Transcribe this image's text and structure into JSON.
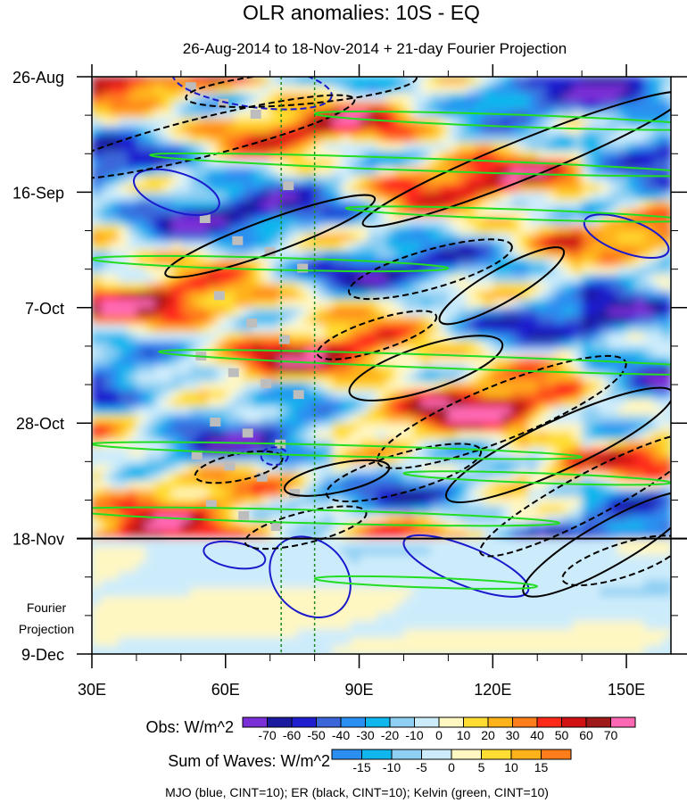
{
  "chart_data": {
    "type": "heatmap",
    "title": "OLR anomalies: 10S - EQ",
    "subtitle": "26-Aug-2014 to 18-Nov-2014 + 21-day Fourier Projection",
    "x_axis": {
      "range": [
        30,
        160
      ],
      "ticks": [
        {
          "value": 30,
          "label": "30E"
        },
        {
          "value": 60,
          "label": "60E"
        },
        {
          "value": 90,
          "label": "90E"
        },
        {
          "value": 120,
          "label": "120E"
        },
        {
          "value": 150,
          "label": "150E"
        }
      ]
    },
    "y_axis": {
      "range_days": [
        0,
        105
      ],
      "ticks": [
        {
          "day": 0,
          "label": "26-Aug"
        },
        {
          "day": 21,
          "label": "16-Sep"
        },
        {
          "day": 42,
          "label": "7-Oct"
        },
        {
          "day": 63,
          "label": "28-Oct"
        },
        {
          "day": 84,
          "label": "18-Nov"
        },
        {
          "day": 105,
          "label": "9-Dec"
        }
      ],
      "forecast_start_day": 84,
      "forecast_label_line1": "Fourier",
      "forecast_label_line2": "Projection"
    },
    "reference_lines_lon": [
      72.5,
      80
    ],
    "obs_colorbar": {
      "label": "Obs: W/m^2",
      "ticks": [
        "-70",
        "-60",
        "-50",
        "-40",
        "-30",
        "-20",
        "-10",
        "0",
        "10",
        "20",
        "30",
        "40",
        "50",
        "60",
        "70"
      ],
      "colors": [
        "#7b2fd6",
        "#1a1a9e",
        "#1f1fcf",
        "#3a66d9",
        "#2a8ff0",
        "#10b6ee",
        "#8ecff3",
        "#cdecfb",
        "#fff7c2",
        "#ffdd33",
        "#ffb21a",
        "#ff7d1a",
        "#ff2a1a",
        "#d01212",
        "#9e1a1a",
        "#ff69b4"
      ]
    },
    "waves_colorbar": {
      "label": "Sum of Waves: W/m^2",
      "ticks": [
        "-15",
        "-10",
        "-5",
        "0",
        "5",
        "10",
        "15"
      ],
      "colors": [
        "#2a8ff0",
        "#10b6ee",
        "#8ecff3",
        "#cdecfb",
        "#fff7c2",
        "#ffdd33",
        "#ffb21a",
        "#ff7d1a"
      ]
    },
    "legend_note": "MJO (blue, CINT=10); ER (black, CINT=10); Kelvin (green, CINT=10)",
    "series": [
      {
        "name": "MJO",
        "color": "#1a1acc",
        "contours": [
          {
            "lon": 66,
            "day": 1.5,
            "rx": 18,
            "ry": 4,
            "angle": 8,
            "dashed": true
          },
          {
            "lon": 49,
            "day": 21,
            "rx": 10,
            "ry": 3.5,
            "angle": 18,
            "dashed": false
          },
          {
            "lon": 62,
            "day": 87,
            "rx": 7,
            "ry": 2.3,
            "angle": 10,
            "dashed": false
          },
          {
            "lon": 79,
            "day": 91,
            "rx": 10,
            "ry": 6.5,
            "angle": 45,
            "dashed": false
          },
          {
            "lon": 114,
            "day": 89,
            "rx": 15,
            "ry": 3.5,
            "angle": 22,
            "dashed": false
          },
          {
            "lon": 150,
            "day": 29,
            "rx": 10,
            "ry": 3,
            "angle": 20,
            "dashed": false
          },
          {
            "lon": 71,
            "day": 69,
            "rx": 3,
            "ry": 1.6,
            "angle": 0,
            "dashed": true
          }
        ]
      },
      {
        "name": "ER",
        "color": "#000000",
        "contours": [
          {
            "lon": 127,
            "day": 15,
            "rx": 39,
            "ry": 3.5,
            "angle": -22,
            "dashed": false
          },
          {
            "lon": 70,
            "day": 29,
            "rx": 25,
            "ry": 3,
            "angle": -20,
            "dashed": false
          },
          {
            "lon": 55,
            "day": 11,
            "rx": 35,
            "ry": 3.5,
            "angle": -14,
            "dashed": true
          },
          {
            "lon": 77,
            "day": 2,
            "rx": 26,
            "ry": 3,
            "angle": -5,
            "dashed": true
          },
          {
            "lon": 106,
            "day": 35,
            "rx": 19,
            "ry": 3.5,
            "angle": -16,
            "dashed": true
          },
          {
            "lon": 122,
            "day": 38,
            "rx": 16,
            "ry": 3,
            "angle": -30,
            "dashed": false
          },
          {
            "lon": 94,
            "day": 47,
            "rx": 14,
            "ry": 2.8,
            "angle": -18,
            "dashed": true
          },
          {
            "lon": 105,
            "day": 53,
            "rx": 18,
            "ry": 4,
            "angle": -18,
            "dashed": false
          },
          {
            "lon": 122,
            "day": 61,
            "rx": 30,
            "ry": 5,
            "angle": -22,
            "dashed": true
          },
          {
            "lon": 135,
            "day": 67,
            "rx": 28,
            "ry": 4.5,
            "angle": -25,
            "dashed": false
          },
          {
            "lon": 142,
            "day": 76,
            "rx": 28,
            "ry": 4,
            "angle": -28,
            "dashed": true
          },
          {
            "lon": 146,
            "day": 85,
            "rx": 22,
            "ry": 4,
            "angle": -30,
            "dashed": false
          },
          {
            "lon": 85,
            "day": 73,
            "rx": 12,
            "ry": 2.6,
            "angle": -12,
            "dashed": false
          },
          {
            "lon": 78,
            "day": 82,
            "rx": 14,
            "ry": 2.8,
            "angle": -14,
            "dashed": true
          },
          {
            "lon": 63,
            "day": 71,
            "rx": 10,
            "ry": 2.4,
            "angle": -12,
            "dashed": true
          },
          {
            "lon": 149,
            "day": 88,
            "rx": 14,
            "ry": 3,
            "angle": -18,
            "dashed": true
          },
          {
            "lon": 100,
            "day": 72,
            "rx": 18,
            "ry": 3.5,
            "angle": -16,
            "dashed": true
          }
        ]
      },
      {
        "name": "Kelvin",
        "color": "#22dd22",
        "contours": [
          {
            "lon": 125,
            "day": 8,
            "rx": 45,
            "ry": 1.1,
            "angle": 2,
            "dashed": false
          },
          {
            "lon": 105,
            "day": 16,
            "rx": 62,
            "ry": 1.1,
            "angle": 2,
            "dashed": false
          },
          {
            "lon": 125,
            "day": 25,
            "rx": 38,
            "ry": 0.9,
            "angle": 2,
            "dashed": false
          },
          {
            "lon": 70,
            "day": 34,
            "rx": 40,
            "ry": 1.1,
            "angle": 1.5,
            "dashed": false
          },
          {
            "lon": 115,
            "day": 52,
            "rx": 70,
            "ry": 1.2,
            "angle": 2,
            "dashed": false
          },
          {
            "lon": 85,
            "day": 68,
            "rx": 55,
            "ry": 1.0,
            "angle": 1.5,
            "dashed": false
          },
          {
            "lon": 80,
            "day": 80,
            "rx": 55,
            "ry": 1.2,
            "angle": 1.5,
            "dashed": false
          },
          {
            "lon": 130,
            "day": 73,
            "rx": 30,
            "ry": 0.9,
            "angle": 2,
            "dashed": false
          },
          {
            "lon": 105,
            "day": 92,
            "rx": 25,
            "ry": 0.9,
            "angle": 2,
            "dashed": false
          }
        ]
      }
    ]
  }
}
